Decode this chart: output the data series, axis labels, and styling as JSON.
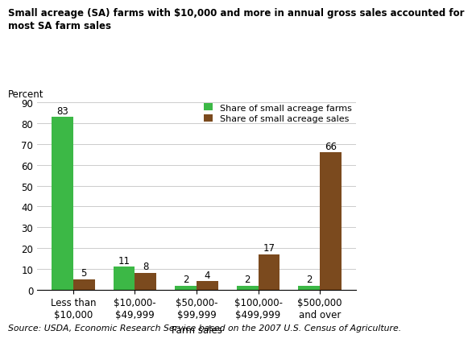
{
  "title_line1": "Small acreage (SA) farms with $10,000 and more in annual gross sales accounted for",
  "title_line2": "most SA farm sales",
  "ylabel": "Percent",
  "xlabel": "Farm sales",
  "source": "Source: USDA, Economic Research Service based on the 2007 U.S. Census of Agriculture.",
  "categories": [
    "Less than\n$10,000",
    "$10,000-\n$49,999",
    "$50,000-\n$99,999",
    "$100,000-\n$499,999",
    "$500,000\nand over"
  ],
  "farms_values": [
    83,
    11,
    2,
    2,
    2
  ],
  "sales_values": [
    5,
    8,
    4,
    17,
    66
  ],
  "farms_color": "#3cb846",
  "sales_color": "#7b4a1e",
  "farms_label": "Share of small acreage farms",
  "sales_label": "Share of small acreage sales",
  "ylim": [
    0,
    90
  ],
  "yticks": [
    0,
    10,
    20,
    30,
    40,
    50,
    60,
    70,
    80,
    90
  ],
  "bar_width": 0.35,
  "title_fontsize": 8.5,
  "label_fontsize": 8.5,
  "tick_fontsize": 8.5,
  "source_fontsize": 7.8,
  "annotation_fontsize": 8.5,
  "legend_fontsize": 8.0
}
